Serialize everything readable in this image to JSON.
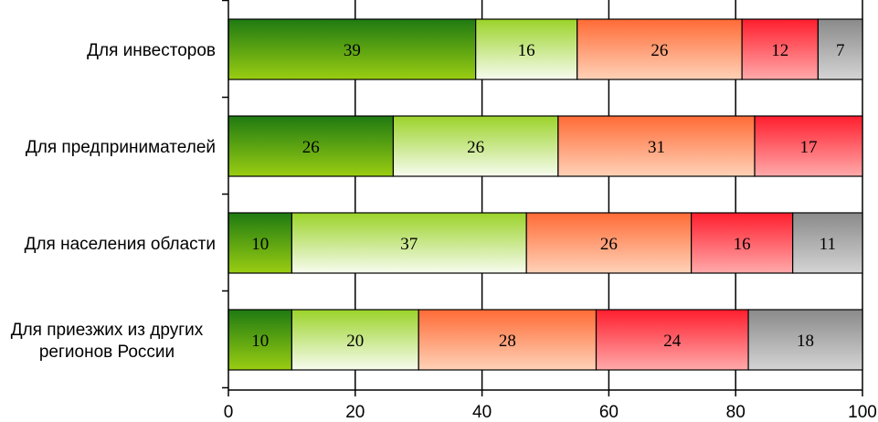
{
  "chart_data": {
    "type": "bar",
    "orientation": "horizontal",
    "stacked": true,
    "categories": [
      "Для инвесторов",
      "Для предпринимателей",
      "Для населения области",
      "Для приезжих из других регионов России"
    ],
    "category_lines": [
      [
        "Для инвесторов"
      ],
      [
        "Для предпринимателей"
      ],
      [
        "Для населения области"
      ],
      [
        "Для приезжих из других",
        "регионов России"
      ]
    ],
    "series": [
      {
        "values": [
          39,
          26,
          10,
          10
        ]
      },
      {
        "values": [
          16,
          26,
          37,
          20
        ]
      },
      {
        "values": [
          26,
          31,
          26,
          28
        ]
      },
      {
        "values": [
          12,
          17,
          16,
          24
        ]
      },
      {
        "values": [
          7,
          0,
          11,
          18
        ]
      }
    ],
    "xlim": [
      0,
      100
    ],
    "xticks": [
      "0",
      "20",
      "40",
      "60",
      "80",
      "100"
    ],
    "grid": "vertical",
    "legend": "none"
  }
}
